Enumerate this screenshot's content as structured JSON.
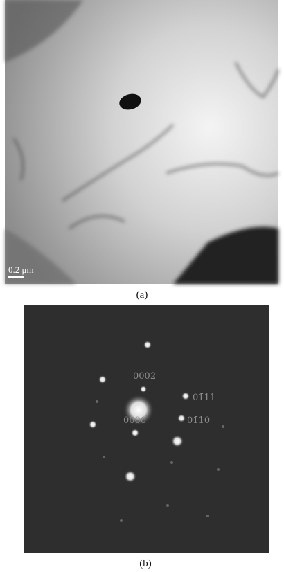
{
  "panels": [
    {
      "caption": "(a)",
      "scale_bar": "0.2 μm"
    },
    {
      "caption": "(b)",
      "spot_labels": [
        "0002",
        "01̄11",
        "0000",
        "01̄10"
      ]
    }
  ]
}
